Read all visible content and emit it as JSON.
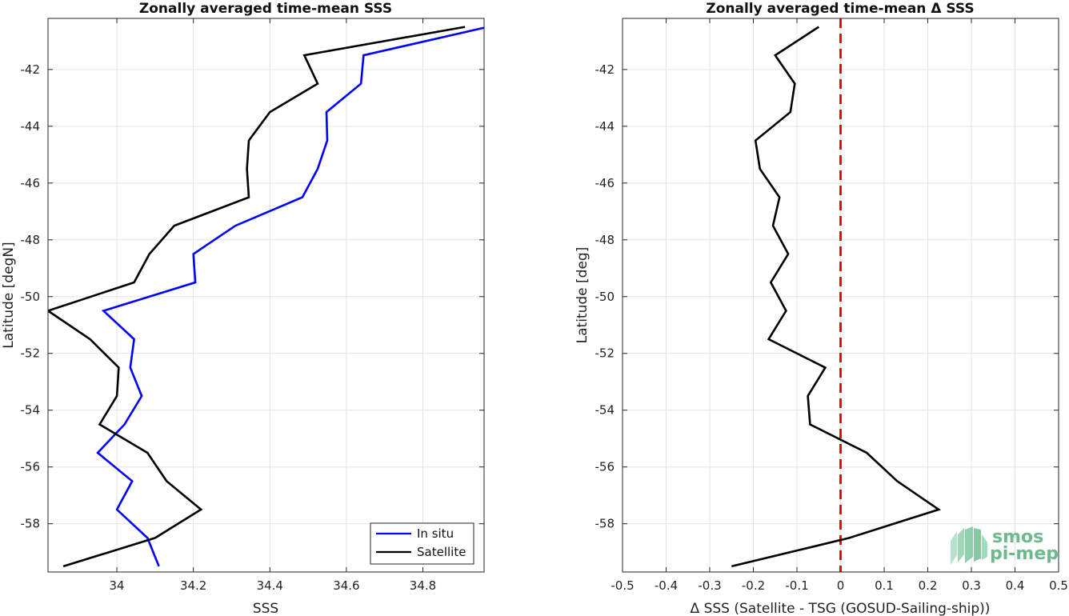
{
  "chart_data": [
    {
      "type": "line",
      "title": "Zonally averaged time-mean SSS",
      "xlabel": "SSS",
      "ylabel": "Latitude [degN]",
      "xlim": [
        33.82,
        34.96
      ],
      "ylim": [
        -59.7,
        -40.2
      ],
      "xticks": [
        34,
        34.2,
        34.4,
        34.6,
        34.8
      ],
      "xtick_labels": [
        "34",
        "34.2",
        "34.4",
        "34.6",
        "34.8"
      ],
      "yticks": [
        -58,
        -56,
        -54,
        -52,
        -50,
        -48,
        -46,
        -44,
        -42
      ],
      "ytick_labels": [
        "-58",
        "-56",
        "-54",
        "-52",
        "-50",
        "-48",
        "-46",
        "-44",
        "-42"
      ],
      "grid": true,
      "legend": "bottom-right",
      "series": [
        {
          "name": "In situ",
          "color": "#0000ff",
          "x": [
            34.11,
            34.08,
            34.0,
            34.04,
            33.95,
            34.02,
            34.065,
            34.035,
            34.045,
            33.965,
            34.205,
            34.2,
            34.31,
            34.485,
            34.525,
            34.55,
            34.548,
            34.638,
            34.645,
            34.97
          ],
          "y": [
            -59.5,
            -58.5,
            -57.5,
            -56.5,
            -55.5,
            -54.5,
            -53.5,
            -52.5,
            -51.5,
            -50.5,
            -49.5,
            -48.5,
            -47.5,
            -46.5,
            -45.5,
            -44.5,
            -43.5,
            -42.5,
            -41.5,
            -40.5
          ]
        },
        {
          "name": "Satellite",
          "color": "#000000",
          "x": [
            33.86,
            34.1,
            34.22,
            34.13,
            34.08,
            33.955,
            34.0,
            34.005,
            33.93,
            33.82,
            34.045,
            34.085,
            34.15,
            34.345,
            34.34,
            34.345,
            34.4,
            34.525,
            34.49,
            34.91
          ],
          "y": [
            -59.5,
            -58.5,
            -57.5,
            -56.5,
            -55.5,
            -54.5,
            -53.5,
            -52.5,
            -51.5,
            -50.5,
            -49.5,
            -48.5,
            -47.5,
            -46.5,
            -45.5,
            -44.5,
            -43.5,
            -42.5,
            -41.5,
            -40.5
          ]
        }
      ]
    },
    {
      "type": "line",
      "title": "Zonally averaged time-mean Δ SSS",
      "xlabel": "Δ SSS (Satellite - TSG (GOSUD-Sailing-ship))",
      "ylabel": "Latitude [deg]",
      "xlim": [
        -0.5,
        0.5
      ],
      "ylim": [
        -59.7,
        -40.2
      ],
      "xticks": [
        -0.5,
        -0.4,
        -0.3,
        -0.2,
        -0.1,
        0,
        0.1,
        0.2,
        0.3,
        0.4,
        0.5
      ],
      "xtick_labels": [
        "-0.5",
        "-0.4",
        "-0.3",
        "-0.2",
        "-0.1",
        "0",
        "0.1",
        "0.2",
        "0.3",
        "0.4",
        "0.5"
      ],
      "yticks": [
        -58,
        -56,
        -54,
        -52,
        -50,
        -48,
        -46,
        -44,
        -42
      ],
      "ytick_labels": [
        "-58",
        "-56",
        "-54",
        "-52",
        "-50",
        "-48",
        "-46",
        "-44",
        "-42"
      ],
      "grid": true,
      "zero_line": {
        "x": 0,
        "color": "#dd0000",
        "style": "dashed"
      },
      "series": [
        {
          "color": "#000000",
          "x": [
            -0.25,
            0.02,
            0.225,
            0.13,
            0.06,
            -0.07,
            -0.075,
            -0.035,
            -0.165,
            -0.125,
            -0.16,
            -0.12,
            -0.155,
            -0.14,
            -0.185,
            -0.195,
            -0.115,
            -0.105,
            -0.15,
            -0.05
          ],
          "y": [
            -59.5,
            -58.5,
            -57.5,
            -56.5,
            -55.5,
            -54.5,
            -53.5,
            -52.5,
            -51.5,
            -50.5,
            -49.5,
            -48.5,
            -47.5,
            -46.5,
            -45.5,
            -44.5,
            -43.5,
            -42.5,
            -41.5,
            -40.5
          ]
        }
      ]
    }
  ],
  "logo": {
    "line1": "smos",
    "line2": "pi-mep",
    "color": "#6fb98f"
  }
}
